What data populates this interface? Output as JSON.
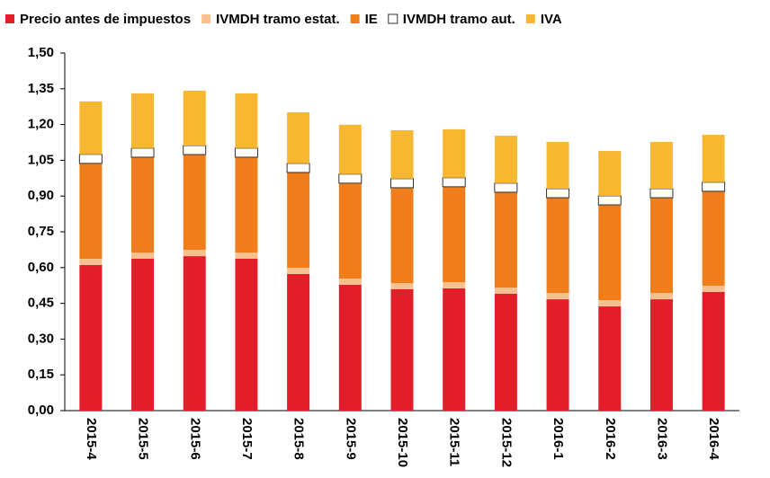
{
  "chart_data": {
    "type": "stacked_bar",
    "categories": [
      "2015-4",
      "2015-5",
      "2015-6",
      "2015-7",
      "2015-8",
      "2015-9",
      "2015-10",
      "2015-11",
      "2015-12",
      "2016-1",
      "2016-2",
      "2016-3",
      "2016-4"
    ],
    "series": [
      {
        "name": "Precio antes de impuestos",
        "color": "#e31e2b",
        "values": [
          0.611,
          0.637,
          0.648,
          0.637,
          0.573,
          0.528,
          0.509,
          0.513,
          0.49,
          0.467,
          0.437,
          0.467,
          0.498
        ]
      },
      {
        "name": "IVMDH tramo estat.",
        "color": "#f9c08f",
        "values": [
          0.026,
          0.026,
          0.026,
          0.026,
          0.026,
          0.026,
          0.026,
          0.026,
          0.026,
          0.026,
          0.026,
          0.026,
          0.026
        ]
      },
      {
        "name": "IE",
        "color": "#ee7d1a",
        "values": [
          0.4,
          0.4,
          0.4,
          0.4,
          0.4,
          0.4,
          0.4,
          0.4,
          0.4,
          0.4,
          0.4,
          0.4,
          0.396
        ]
      },
      {
        "name": "IVMDH tramo aut.",
        "color": "#ffffff",
        "values": [
          0.038,
          0.038,
          0.038,
          0.038,
          0.038,
          0.038,
          0.038,
          0.038,
          0.038,
          0.038,
          0.038,
          0.038,
          0.038
        ]
      },
      {
        "name": "IVA",
        "color": "#f7b731",
        "values": [
          0.222,
          0.23,
          0.23,
          0.23,
          0.214,
          0.207,
          0.203,
          0.203,
          0.199,
          0.196,
          0.188,
          0.196,
          0.199
        ]
      }
    ],
    "ylim": [
      0,
      1.5
    ],
    "yticks": [
      {
        "value": 0,
        "label": "0,00"
      },
      {
        "value": 0.15,
        "label": "0,15"
      },
      {
        "value": 0.3,
        "label": "0,30"
      },
      {
        "value": 0.45,
        "label": "0,45"
      },
      {
        "value": 0.6,
        "label": "0,60"
      },
      {
        "value": 0.75,
        "label": "0,75"
      },
      {
        "value": 0.9,
        "label": "0,90"
      },
      {
        "value": 1.05,
        "label": "1,05"
      },
      {
        "value": 1.2,
        "label": "1,20"
      },
      {
        "value": 1.35,
        "label": "1,35"
      },
      {
        "value": 1.5,
        "label": "1,50"
      }
    ],
    "legend": "top"
  }
}
